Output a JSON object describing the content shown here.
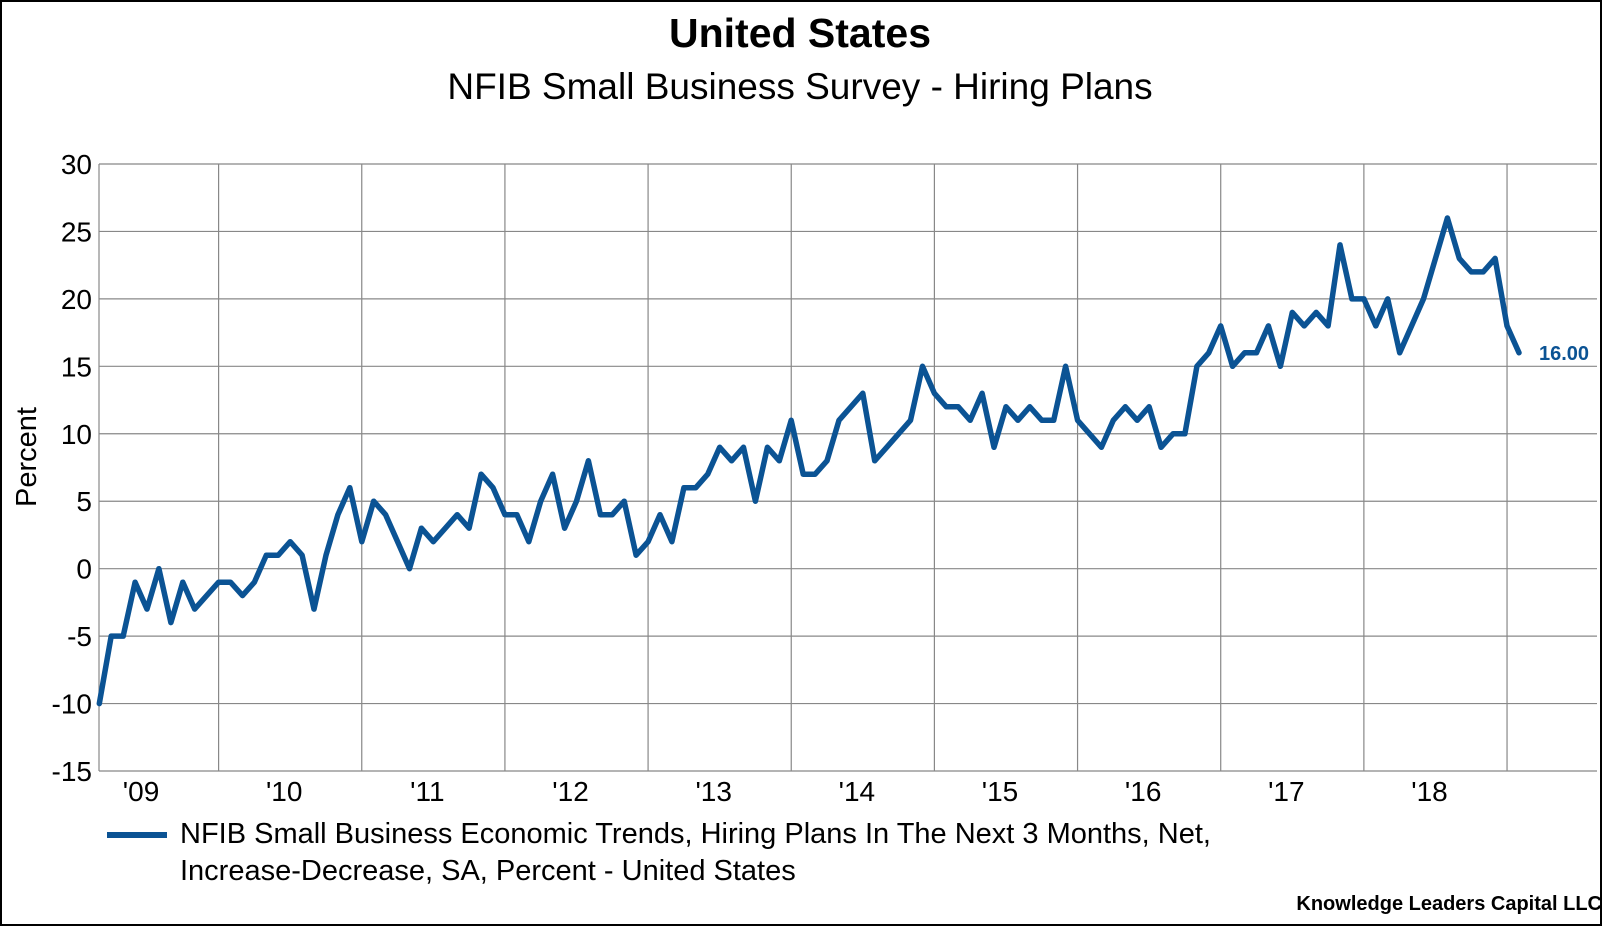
{
  "chart_data": {
    "type": "line",
    "title": "United States",
    "subtitle": "NFIB Small Business Survey - Hiring Plans",
    "ylabel": "Percent",
    "xlabel": "",
    "ylim": [
      -15,
      30
    ],
    "yticks": [
      30,
      25,
      20,
      15,
      10,
      5,
      0,
      -5,
      -10,
      -15
    ],
    "ytick_labels": [
      "30",
      "25",
      "20",
      "15",
      "10",
      "5",
      "0",
      "-5",
      "-10",
      "-15"
    ],
    "xtick_labels": [
      "'09",
      "'10",
      "'11",
      "'12",
      "'13",
      "'14",
      "'15",
      "'16",
      "'17",
      "'18"
    ],
    "x_start": "2009-03",
    "x_end": "2019-02",
    "frequency": "monthly",
    "grid": true,
    "legend_position": "bottom",
    "series": [
      {
        "name": "NFIB Small Business Economic Trends, Hiring Plans In The Next 3 Months, Net, Increase-Decrease, SA, Percent - United States",
        "legend_line1": "NFIB Small Business Economic Trends, Hiring Plans In The Next 3 Months, Net,",
        "legend_line2": "Increase-Decrease, SA, Percent - United States",
        "color": "#0B5394",
        "last_value_label": "16.00",
        "values": [
          -10,
          -5,
          -5,
          -1,
          -3,
          0,
          -4,
          -1,
          -3,
          -2,
          -1,
          -1,
          -2,
          -1,
          1,
          1,
          2,
          1,
          -3,
          1,
          4,
          6,
          2,
          5,
          4,
          2,
          0,
          3,
          2,
          3,
          4,
          3,
          7,
          6,
          4,
          4,
          2,
          5,
          7,
          3,
          5,
          8,
          4,
          4,
          5,
          1,
          2,
          4,
          2,
          6,
          6,
          7,
          9,
          8,
          9,
          5,
          9,
          8,
          11,
          7,
          7,
          8,
          11,
          12,
          13,
          8,
          9,
          10,
          11,
          15,
          13,
          12,
          12,
          11,
          13,
          9,
          12,
          11,
          12,
          11,
          11,
          15,
          11,
          10,
          9,
          11,
          12,
          11,
          12,
          9,
          10,
          10,
          15,
          16,
          18,
          15,
          16,
          16,
          18,
          15,
          19,
          18,
          19,
          18,
          24,
          20,
          20,
          18,
          20,
          16,
          18,
          20,
          23,
          26,
          23,
          22,
          22,
          23,
          18,
          16
        ]
      }
    ]
  },
  "footer": "Knowledge Leaders Capital LLC",
  "colors": {
    "grid": "#888888",
    "line": "#0B5394"
  }
}
